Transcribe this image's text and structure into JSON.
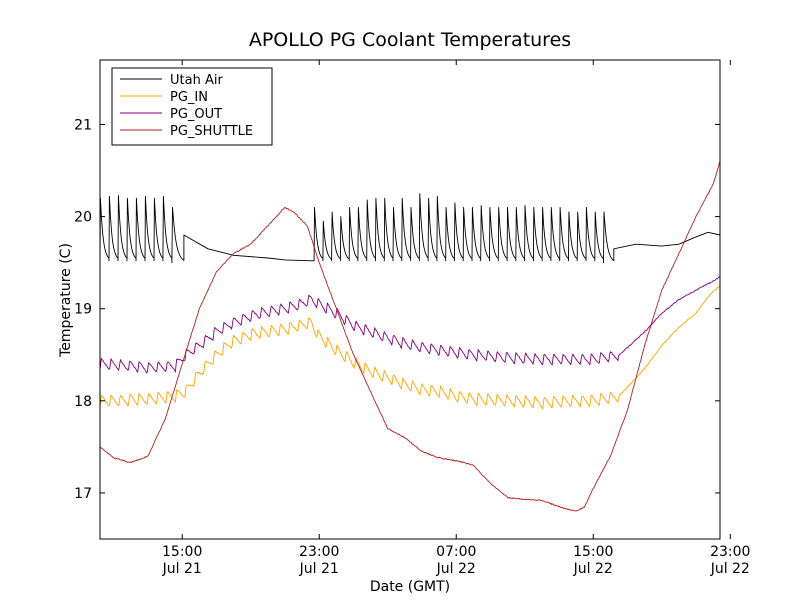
{
  "chart_data": {
    "type": "line",
    "title": "APOLLO PG Coolant Temperatures",
    "xlabel": "Date (GMT)",
    "ylabel": "Temperature (C)",
    "xlim": [
      10.2,
      46.4
    ],
    "ylim": [
      16.5,
      21.7
    ],
    "x_unit": "hours since Jul 21 00:00 GMT",
    "x_ticks": [
      {
        "x": 15,
        "time": "15:00",
        "date": "Jul 21"
      },
      {
        "x": 23,
        "time": "23:00",
        "date": "Jul 21"
      },
      {
        "x": 31,
        "time": "07:00",
        "date": "Jul 22"
      },
      {
        "x": 39,
        "time": "15:00",
        "date": "Jul 22"
      },
      {
        "x": 47,
        "time": "23:00",
        "date": "Jul 22"
      }
    ],
    "y_ticks": [
      17,
      18,
      19,
      20,
      21
    ],
    "legend_position": "top-left",
    "series": [
      {
        "name": "Utah Air",
        "color": "#000000",
        "segments": [
          {
            "x0": 10.2,
            "x1": 14.4,
            "base": 19.52,
            "cycle": 0.55,
            "peaks": [
              20.2,
              20.22,
              20.23,
              20.2,
              20.2,
              20.22,
              20.2,
              20.22
            ]
          },
          {
            "x0": 14.4,
            "x1": 15.1,
            "base": 19.5,
            "cycle": 0.6,
            "peaks": [
              20.1
            ]
          },
          {
            "x0": 15.1,
            "x1": 22.7,
            "points": [
              [
                15.1,
                19.8
              ],
              [
                16.5,
                19.65
              ],
              [
                18,
                19.58
              ],
              [
                20,
                19.55
              ],
              [
                21,
                19.53
              ],
              [
                22.6,
                19.52
              ]
            ]
          },
          {
            "x0": 22.7,
            "x1": 39.6,
            "base": 19.52,
            "cycle": 0.52,
            "peaks": [
              20.1,
              19.95,
              20.05,
              20.0,
              20.1,
              20.1,
              20.18,
              20.2,
              20.2,
              20.1,
              20.2,
              20.1,
              20.25,
              20.2,
              20.22,
              20.1,
              20.15,
              20.1,
              20.1,
              20.12,
              20.1,
              20.1,
              20.1,
              20.1,
              20.12,
              20.1,
              20.1,
              20.1,
              20.1,
              20.05,
              20.05,
              20.1,
              20.05
            ]
          },
          {
            "x0": 39.6,
            "x1": 40.2,
            "base": 19.5,
            "cycle": 0.55,
            "peaks": [
              20.05
            ]
          },
          {
            "x0": 40.2,
            "x1": 46.4,
            "points": [
              [
                40.2,
                19.65
              ],
              [
                41.5,
                19.7
              ],
              [
                43,
                19.68
              ],
              [
                44,
                19.7
              ],
              [
                45,
                19.78
              ],
              [
                45.7,
                19.83
              ],
              [
                46.4,
                19.8
              ]
            ]
          }
        ]
      },
      {
        "name": "PG_IN",
        "color": "#ffa500",
        "saw_x0": 10.2,
        "saw_x1": 40.5,
        "saw_cycle": 0.55,
        "saw_amp": 0.13,
        "points": [
          [
            10.2,
            18.0
          ],
          [
            11,
            18.0
          ],
          [
            13,
            18.02
          ],
          [
            14.6,
            18.05
          ],
          [
            15.2,
            18.1
          ],
          [
            16,
            18.3
          ],
          [
            17,
            18.5
          ],
          [
            18,
            18.65
          ],
          [
            19,
            18.72
          ],
          [
            20,
            18.75
          ],
          [
            21,
            18.78
          ],
          [
            21.9,
            18.82
          ],
          [
            22.5,
            18.85
          ],
          [
            23,
            18.7
          ],
          [
            24,
            18.55
          ],
          [
            25,
            18.42
          ],
          [
            26,
            18.32
          ],
          [
            27,
            18.25
          ],
          [
            28,
            18.18
          ],
          [
            29,
            18.12
          ],
          [
            30,
            18.1
          ],
          [
            31,
            18.05
          ],
          [
            32,
            18.02
          ],
          [
            34,
            18.0
          ],
          [
            36,
            17.98
          ],
          [
            38,
            18.0
          ],
          [
            39,
            18.0
          ],
          [
            40.5,
            18.05
          ],
          [
            41,
            18.15
          ],
          [
            42,
            18.35
          ],
          [
            43,
            18.6
          ],
          [
            44,
            18.8
          ],
          [
            45,
            18.95
          ],
          [
            45.8,
            19.15
          ],
          [
            46.4,
            19.25
          ]
        ]
      },
      {
        "name": "PG_OUT",
        "color": "#800080",
        "saw_x0": 10.2,
        "saw_x1": 40.5,
        "saw_cycle": 0.55,
        "saw_amp": 0.12,
        "points": [
          [
            10.2,
            18.4
          ],
          [
            12,
            18.38
          ],
          [
            13,
            18.36
          ],
          [
            14.6,
            18.38
          ],
          [
            15.2,
            18.5
          ],
          [
            16,
            18.6
          ],
          [
            17,
            18.75
          ],
          [
            18,
            18.85
          ],
          [
            19,
            18.92
          ],
          [
            20,
            18.97
          ],
          [
            21,
            19.0
          ],
          [
            21.9,
            19.05
          ],
          [
            22.5,
            19.1
          ],
          [
            23,
            19.05
          ],
          [
            24,
            18.95
          ],
          [
            25,
            18.82
          ],
          [
            26,
            18.75
          ],
          [
            27,
            18.68
          ],
          [
            28,
            18.62
          ],
          [
            29,
            18.58
          ],
          [
            30,
            18.55
          ],
          [
            32,
            18.5
          ],
          [
            34,
            18.47
          ],
          [
            36,
            18.45
          ],
          [
            38,
            18.45
          ],
          [
            39,
            18.45
          ],
          [
            40.5,
            18.5
          ],
          [
            41,
            18.58
          ],
          [
            42,
            18.75
          ],
          [
            43,
            18.95
          ],
          [
            44,
            19.1
          ],
          [
            45,
            19.2
          ],
          [
            46,
            19.3
          ],
          [
            46.4,
            19.35
          ]
        ]
      },
      {
        "name": "PG_SHUTTLE",
        "color": "#b22222",
        "points": [
          [
            10.2,
            17.5
          ],
          [
            11,
            17.38
          ],
          [
            12,
            17.33
          ],
          [
            13,
            17.4
          ],
          [
            14,
            17.8
          ],
          [
            15,
            18.4
          ],
          [
            16,
            19.0
          ],
          [
            17,
            19.4
          ],
          [
            18,
            19.6
          ],
          [
            19,
            19.7
          ],
          [
            20,
            19.9
          ],
          [
            21,
            20.1
          ],
          [
            21.5,
            20.05
          ],
          [
            22.3,
            19.9
          ],
          [
            23,
            19.5
          ],
          [
            24,
            19.0
          ],
          [
            25,
            18.5
          ],
          [
            26,
            18.1
          ],
          [
            27,
            17.7
          ],
          [
            28,
            17.6
          ],
          [
            29,
            17.45
          ],
          [
            30,
            17.38
          ],
          [
            31,
            17.35
          ],
          [
            32,
            17.3
          ],
          [
            33,
            17.1
          ],
          [
            34,
            16.95
          ],
          [
            35,
            16.93
          ],
          [
            36,
            16.92
          ],
          [
            37,
            16.85
          ],
          [
            38,
            16.8
          ],
          [
            38.5,
            16.85
          ],
          [
            39,
            17.05
          ],
          [
            40,
            17.4
          ],
          [
            41,
            17.9
          ],
          [
            42,
            18.6
          ],
          [
            43,
            19.2
          ],
          [
            44,
            19.6
          ],
          [
            45,
            20.0
          ],
          [
            46,
            20.35
          ],
          [
            46.4,
            20.6
          ]
        ]
      }
    ]
  }
}
